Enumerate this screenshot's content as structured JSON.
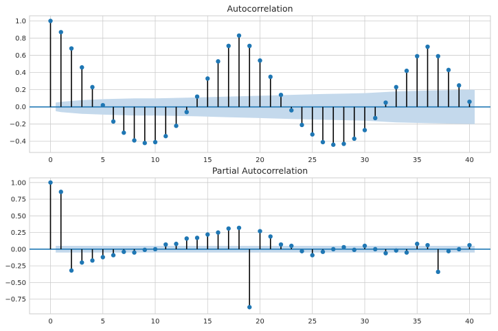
{
  "chart_data": [
    {
      "type": "stem",
      "title": "Autocorrelation",
      "xlabel": "",
      "ylabel": "",
      "xlim": [
        -2,
        42
      ],
      "ylim": [
        -0.53,
        1.06
      ],
      "xticks": [
        0,
        5,
        10,
        15,
        20,
        25,
        30,
        35,
        40
      ],
      "xtick_labels": [
        "0",
        "5",
        "10",
        "15",
        "20",
        "25",
        "30",
        "35",
        "40"
      ],
      "yticks": [
        -0.4,
        -0.2,
        0.0,
        0.2,
        0.4,
        0.6,
        0.8,
        1.0
      ],
      "ytick_labels": [
        "−0.4",
        "−0.2",
        "0.0",
        "0.2",
        "0.4",
        "0.6",
        "0.8",
        "1.0"
      ],
      "grid": true,
      "marker_color": "#1f77b4",
      "stem_color": "#000000",
      "band_color": "#c4d9ec",
      "x": [
        0,
        1,
        2,
        3,
        4,
        5,
        6,
        7,
        8,
        9,
        10,
        11,
        12,
        13,
        14,
        15,
        16,
        17,
        18,
        19,
        20,
        21,
        22,
        23,
        24,
        25,
        26,
        27,
        28,
        29,
        30,
        31,
        32,
        33,
        34,
        35,
        36,
        37,
        38,
        39,
        40
      ],
      "values": [
        1.0,
        0.87,
        0.68,
        0.46,
        0.23,
        0.02,
        -0.17,
        -0.3,
        -0.39,
        -0.42,
        -0.41,
        -0.34,
        -0.22,
        -0.06,
        0.12,
        0.33,
        0.53,
        0.71,
        0.83,
        0.71,
        0.54,
        0.35,
        0.14,
        -0.04,
        -0.21,
        -0.32,
        -0.41,
        -0.44,
        -0.43,
        -0.37,
        -0.27,
        -0.13,
        0.05,
        0.23,
        0.42,
        0.59,
        0.7,
        0.59,
        0.43,
        0.25,
        0.06
      ],
      "confidence_band": {
        "x": [
          0.5,
          1,
          3,
          5,
          8,
          10,
          14,
          17,
          20,
          23,
          26,
          30,
          33,
          36,
          40.5
        ],
        "upper": [
          0.05,
          0.06,
          0.08,
          0.09,
          0.1,
          0.1,
          0.11,
          0.12,
          0.13,
          0.14,
          0.15,
          0.16,
          0.18,
          0.19,
          0.2
        ],
        "lower": [
          -0.05,
          -0.06,
          -0.08,
          -0.09,
          -0.1,
          -0.1,
          -0.11,
          -0.12,
          -0.13,
          -0.14,
          -0.15,
          -0.16,
          -0.18,
          -0.19,
          -0.2
        ]
      }
    },
    {
      "type": "stem",
      "title": "Partial Autocorrelation",
      "xlabel": "",
      "ylabel": "",
      "xlim": [
        -2,
        42
      ],
      "ylim": [
        -0.97,
        1.07
      ],
      "xticks": [
        0,
        5,
        10,
        15,
        20,
        25,
        30,
        35,
        40
      ],
      "xtick_labels": [
        "0",
        "5",
        "10",
        "15",
        "20",
        "25",
        "30",
        "35",
        "40"
      ],
      "yticks": [
        -0.75,
        -0.5,
        -0.25,
        0.0,
        0.25,
        0.5,
        0.75,
        1.0
      ],
      "ytick_labels": [
        "−0.75",
        "−0.50",
        "−0.25",
        "0.00",
        "0.25",
        "0.50",
        "0.75",
        "1.00"
      ],
      "grid": true,
      "marker_color": "#1f77b4",
      "stem_color": "#000000",
      "band_color": "#c4d9ec",
      "x": [
        0,
        1,
        2,
        3,
        4,
        5,
        6,
        7,
        8,
        9,
        10,
        11,
        12,
        13,
        14,
        15,
        16,
        17,
        18,
        19,
        20,
        21,
        22,
        23,
        24,
        25,
        26,
        27,
        28,
        29,
        30,
        31,
        32,
        33,
        34,
        35,
        36,
        37,
        38,
        39,
        40
      ],
      "values": [
        1.0,
        0.86,
        -0.32,
        -0.2,
        -0.17,
        -0.12,
        -0.09,
        -0.04,
        -0.05,
        -0.01,
        0.0,
        0.07,
        0.08,
        0.16,
        0.17,
        0.22,
        0.25,
        0.31,
        0.32,
        -0.87,
        0.27,
        0.19,
        0.07,
        0.05,
        -0.03,
        -0.09,
        -0.04,
        0.0,
        0.03,
        -0.01,
        0.05,
        0.0,
        -0.06,
        -0.02,
        -0.05,
        0.08,
        0.06,
        -0.34,
        -0.03,
        0.0,
        0.06
      ],
      "confidence_band": {
        "x": [
          0.5,
          40.5
        ],
        "upper": [
          0.05,
          0.05
        ],
        "lower": [
          -0.05,
          -0.05
        ]
      }
    }
  ]
}
